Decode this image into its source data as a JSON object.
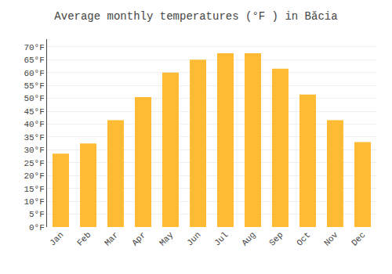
{
  "chart_data": {
    "type": "bar",
    "title": "Average monthly temperatures (°F ) in Băcia",
    "categories": [
      "Jan",
      "Feb",
      "Mar",
      "Apr",
      "May",
      "Jun",
      "Jul",
      "Aug",
      "Sep",
      "Oct",
      "Nov",
      "Dec"
    ],
    "values": [
      28.5,
      32.5,
      41.5,
      50.5,
      60.0,
      65.0,
      67.5,
      67.5,
      61.5,
      51.5,
      41.5,
      33.0
    ],
    "color": "#FFBB33",
    "ylim": [
      0,
      73
    ],
    "yticks": [
      {
        "value": 0,
        "label": "0°F"
      },
      {
        "value": 5,
        "label": "5°F"
      },
      {
        "value": 10,
        "label": "10°F"
      },
      {
        "value": 15,
        "label": "15°F"
      },
      {
        "value": 20,
        "label": "20°F"
      },
      {
        "value": 25,
        "label": "25°F"
      },
      {
        "value": 30,
        "label": "30°F"
      },
      {
        "value": 35,
        "label": "35°F"
      },
      {
        "value": 40,
        "label": "40°F"
      },
      {
        "value": 45,
        "label": "45°F"
      },
      {
        "value": 50,
        "label": "50°F"
      },
      {
        "value": 55,
        "label": "55°F"
      },
      {
        "value": 60,
        "label": "60°F"
      },
      {
        "value": 65,
        "label": "65°F"
      },
      {
        "value": 70,
        "label": "70°F"
      }
    ],
    "grid": true
  }
}
